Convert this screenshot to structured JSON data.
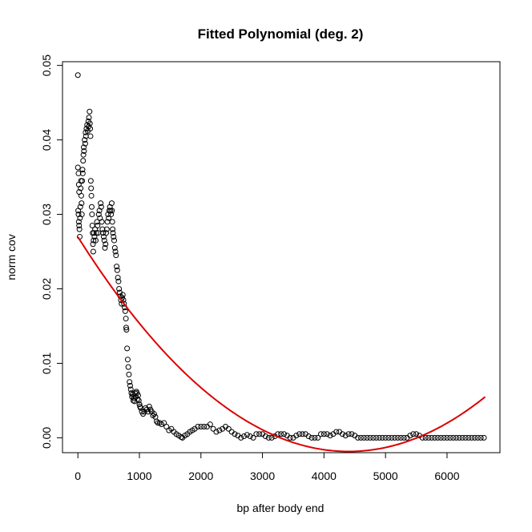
{
  "chart_data": {
    "type": "scatter",
    "title": "Fitted Polynomial (deg. 2)",
    "xlabel": "bp after body end",
    "ylabel": "norm cov",
    "xlim": [
      -250,
      6860
    ],
    "ylim": [
      -0.002,
      0.0505
    ],
    "xticks": [
      0,
      1000,
      2000,
      3000,
      4000,
      5000,
      6000
    ],
    "xtick_labels": [
      "0",
      "1000",
      "2000",
      "3000",
      "4000",
      "5000",
      "6000"
    ],
    "yticks": [
      0.0,
      0.01,
      0.02,
      0.03,
      0.04,
      0.05
    ],
    "ytick_labels": [
      "0.00",
      "0.01",
      "0.02",
      "0.03",
      "0.04",
      "0.05"
    ],
    "grid": false,
    "legend": "none",
    "point_color": "#000000",
    "fit_color": "#dd0000",
    "points": [
      [
        0,
        0.0487
      ],
      [
        0,
        0.0363
      ],
      [
        10,
        0.0355
      ],
      [
        15,
        0.034
      ],
      [
        20,
        0.033
      ],
      [
        5,
        0.0305
      ],
      [
        10,
        0.03
      ],
      [
        15,
        0.029
      ],
      [
        20,
        0.0285
      ],
      [
        25,
        0.028
      ],
      [
        30,
        0.027
      ],
      [
        35,
        0.0295
      ],
      [
        40,
        0.031
      ],
      [
        45,
        0.0335
      ],
      [
        50,
        0.0345
      ],
      [
        55,
        0.0325
      ],
      [
        60,
        0.0315
      ],
      [
        65,
        0.03
      ],
      [
        70,
        0.0345
      ],
      [
        75,
        0.036
      ],
      [
        80,
        0.0355
      ],
      [
        85,
        0.0372
      ],
      [
        90,
        0.038
      ],
      [
        95,
        0.039
      ],
      [
        100,
        0.0385
      ],
      [
        110,
        0.04
      ],
      [
        120,
        0.0395
      ],
      [
        125,
        0.041
      ],
      [
        130,
        0.0405
      ],
      [
        140,
        0.0415
      ],
      [
        150,
        0.042
      ],
      [
        160,
        0.0412
      ],
      [
        170,
        0.0425
      ],
      [
        175,
        0.0418
      ],
      [
        180,
        0.043
      ],
      [
        190,
        0.0438
      ],
      [
        195,
        0.0422
      ],
      [
        200,
        0.0415
      ],
      [
        205,
        0.0405
      ],
      [
        210,
        0.0345
      ],
      [
        215,
        0.0335
      ],
      [
        220,
        0.0325
      ],
      [
        225,
        0.031
      ],
      [
        230,
        0.03
      ],
      [
        235,
        0.0285
      ],
      [
        240,
        0.0275
      ],
      [
        245,
        0.026
      ],
      [
        250,
        0.025
      ],
      [
        255,
        0.0265
      ],
      [
        260,
        0.0275
      ],
      [
        270,
        0.027
      ],
      [
        280,
        0.028
      ],
      [
        290,
        0.0265
      ],
      [
        300,
        0.0275
      ],
      [
        310,
        0.029
      ],
      [
        320,
        0.0285
      ],
      [
        330,
        0.0275
      ],
      [
        340,
        0.03
      ],
      [
        350,
        0.0305
      ],
      [
        360,
        0.0295
      ],
      [
        370,
        0.0315
      ],
      [
        380,
        0.031
      ],
      [
        390,
        0.029
      ],
      [
        400,
        0.028
      ],
      [
        410,
        0.0275
      ],
      [
        420,
        0.027
      ],
      [
        430,
        0.0265
      ],
      [
        440,
        0.0255
      ],
      [
        450,
        0.026
      ],
      [
        460,
        0.0275
      ],
      [
        470,
        0.028
      ],
      [
        480,
        0.029
      ],
      [
        490,
        0.03
      ],
      [
        500,
        0.0295
      ],
      [
        510,
        0.0305
      ],
      [
        520,
        0.031
      ],
      [
        530,
        0.0305
      ],
      [
        540,
        0.03
      ],
      [
        550,
        0.0315
      ],
      [
        555,
        0.0305
      ],
      [
        560,
        0.029
      ],
      [
        565,
        0.028
      ],
      [
        570,
        0.0275
      ],
      [
        580,
        0.027
      ],
      [
        590,
        0.0265
      ],
      [
        600,
        0.0255
      ],
      [
        610,
        0.025
      ],
      [
        620,
        0.0245
      ],
      [
        630,
        0.023
      ],
      [
        640,
        0.0225
      ],
      [
        650,
        0.0215
      ],
      [
        660,
        0.021
      ],
      [
        670,
        0.02
      ],
      [
        680,
        0.0195
      ],
      [
        690,
        0.019
      ],
      [
        700,
        0.0185
      ],
      [
        710,
        0.018
      ],
      [
        720,
        0.0188
      ],
      [
        730,
        0.0192
      ],
      [
        740,
        0.0185
      ],
      [
        750,
        0.018
      ],
      [
        760,
        0.0175
      ],
      [
        770,
        0.017
      ],
      [
        780,
        0.016
      ],
      [
        785,
        0.0148
      ],
      [
        790,
        0.0145
      ],
      [
        800,
        0.012
      ],
      [
        810,
        0.0105
      ],
      [
        820,
        0.0095
      ],
      [
        830,
        0.0085
      ],
      [
        840,
        0.0075
      ],
      [
        850,
        0.007
      ],
      [
        860,
        0.0065
      ],
      [
        870,
        0.006
      ],
      [
        880,
        0.0055
      ],
      [
        890,
        0.0058
      ],
      [
        900,
        0.005
      ],
      [
        910,
        0.0053
      ],
      [
        920,
        0.0049
      ],
      [
        930,
        0.006
      ],
      [
        940,
        0.0055
      ],
      [
        950,
        0.0062
      ],
      [
        960,
        0.006
      ],
      [
        970,
        0.0052
      ],
      [
        980,
        0.0057
      ],
      [
        990,
        0.005
      ],
      [
        1000,
        0.0045
      ],
      [
        1010,
        0.0042
      ],
      [
        1020,
        0.004
      ],
      [
        1040,
        0.0035
      ],
      [
        1060,
        0.0032
      ],
      [
        1080,
        0.0035
      ],
      [
        1100,
        0.004
      ],
      [
        1120,
        0.0038
      ],
      [
        1140,
        0.0035
      ],
      [
        1160,
        0.0042
      ],
      [
        1180,
        0.0038
      ],
      [
        1200,
        0.0035
      ],
      [
        1220,
        0.003
      ],
      [
        1240,
        0.0032
      ],
      [
        1260,
        0.0028
      ],
      [
        1280,
        0.0022
      ],
      [
        1300,
        0.002
      ],
      [
        1330,
        0.002
      ],
      [
        1360,
        0.0018
      ],
      [
        1400,
        0.002
      ],
      [
        1440,
        0.0015
      ],
      [
        1480,
        0.001
      ],
      [
        1520,
        0.0012
      ],
      [
        1560,
        0.0008
      ],
      [
        1600,
        0.0005
      ],
      [
        1640,
        0.0003
      ],
      [
        1680,
        0.0001
      ],
      [
        1700,
        0.0
      ],
      [
        1740,
        0.0003
      ],
      [
        1780,
        0.0005
      ],
      [
        1820,
        0.0008
      ],
      [
        1860,
        0.001
      ],
      [
        1900,
        0.0012
      ],
      [
        1950,
        0.0015
      ],
      [
        2000,
        0.0015
      ],
      [
        2050,
        0.0015
      ],
      [
        2100,
        0.0015
      ],
      [
        2150,
        0.0018
      ],
      [
        2200,
        0.0012
      ],
      [
        2250,
        0.0008
      ],
      [
        2300,
        0.001
      ],
      [
        2350,
        0.0012
      ],
      [
        2400,
        0.0015
      ],
      [
        2450,
        0.0012
      ],
      [
        2500,
        0.0008
      ],
      [
        2550,
        0.0005
      ],
      [
        2600,
        0.0003
      ],
      [
        2650,
        0.0
      ],
      [
        2700,
        0.0002
      ],
      [
        2750,
        0.0004
      ],
      [
        2800,
        0.0002
      ],
      [
        2850,
        0.0
      ],
      [
        2900,
        0.0005
      ],
      [
        2950,
        0.0005
      ],
      [
        3000,
        0.0005
      ],
      [
        3050,
        0.0002
      ],
      [
        3100,
        0.0
      ],
      [
        3150,
        0.0
      ],
      [
        3200,
        0.0002
      ],
      [
        3250,
        0.0005
      ],
      [
        3300,
        0.0005
      ],
      [
        3350,
        0.0005
      ],
      [
        3400,
        0.0003
      ],
      [
        3450,
        0.0
      ],
      [
        3500,
        0.0
      ],
      [
        3550,
        0.0003
      ],
      [
        3600,
        0.0005
      ],
      [
        3650,
        0.0005
      ],
      [
        3700,
        0.0005
      ],
      [
        3750,
        0.0002
      ],
      [
        3800,
        0.0
      ],
      [
        3850,
        0.0
      ],
      [
        3900,
        0.0
      ],
      [
        3950,
        0.0005
      ],
      [
        4000,
        0.0005
      ],
      [
        4050,
        0.0005
      ],
      [
        4100,
        0.0003
      ],
      [
        4150,
        0.0005
      ],
      [
        4200,
        0.0008
      ],
      [
        4250,
        0.0008
      ],
      [
        4300,
        0.0005
      ],
      [
        4350,
        0.0003
      ],
      [
        4400,
        0.0005
      ],
      [
        4450,
        0.0005
      ],
      [
        4500,
        0.0003
      ],
      [
        4550,
        0.0
      ],
      [
        4600,
        0.0
      ],
      [
        4650,
        0.0
      ],
      [
        4700,
        0.0
      ],
      [
        4750,
        0.0
      ],
      [
        4800,
        0.0
      ],
      [
        4850,
        0.0
      ],
      [
        4900,
        0.0
      ],
      [
        4950,
        0.0
      ],
      [
        5000,
        0.0
      ],
      [
        5050,
        0.0
      ],
      [
        5100,
        0.0
      ],
      [
        5150,
        0.0
      ],
      [
        5200,
        0.0
      ],
      [
        5250,
        0.0
      ],
      [
        5300,
        0.0
      ],
      [
        5350,
        0.0
      ],
      [
        5400,
        0.0003
      ],
      [
        5450,
        0.0005
      ],
      [
        5500,
        0.0005
      ],
      [
        5550,
        0.0003
      ],
      [
        5600,
        0.0
      ],
      [
        5650,
        0.0
      ],
      [
        5700,
        0.0
      ],
      [
        5750,
        0.0
      ],
      [
        5800,
        0.0
      ],
      [
        5850,
        0.0
      ],
      [
        5900,
        0.0
      ],
      [
        5950,
        0.0
      ],
      [
        6000,
        0.0
      ],
      [
        6050,
        0.0
      ],
      [
        6100,
        0.0
      ],
      [
        6150,
        0.0
      ],
      [
        6200,
        0.0
      ],
      [
        6250,
        0.0
      ],
      [
        6300,
        0.0
      ],
      [
        6350,
        0.0
      ],
      [
        6400,
        0.0
      ],
      [
        6450,
        0.0
      ],
      [
        6500,
        0.0
      ],
      [
        6550,
        0.0
      ],
      [
        6600,
        0.0
      ]
    ],
    "fit": {
      "type": "polynomial",
      "degree": 2,
      "x_range": [
        0,
        6620
      ],
      "samples": [
        [
          0,
          0.0257
        ],
        [
          500,
          0.0208
        ],
        [
          1000,
          0.0161
        ],
        [
          1500,
          0.0116
        ],
        [
          2000,
          0.0077
        ],
        [
          2500,
          0.0042
        ],
        [
          3000,
          0.0008
        ],
        [
          3360,
          -0.0019
        ],
        [
          5100,
          -0.0019
        ],
        [
          5600,
          0.0001
        ],
        [
          6000,
          0.0024
        ],
        [
          6620,
          0.006
        ]
      ]
    }
  }
}
